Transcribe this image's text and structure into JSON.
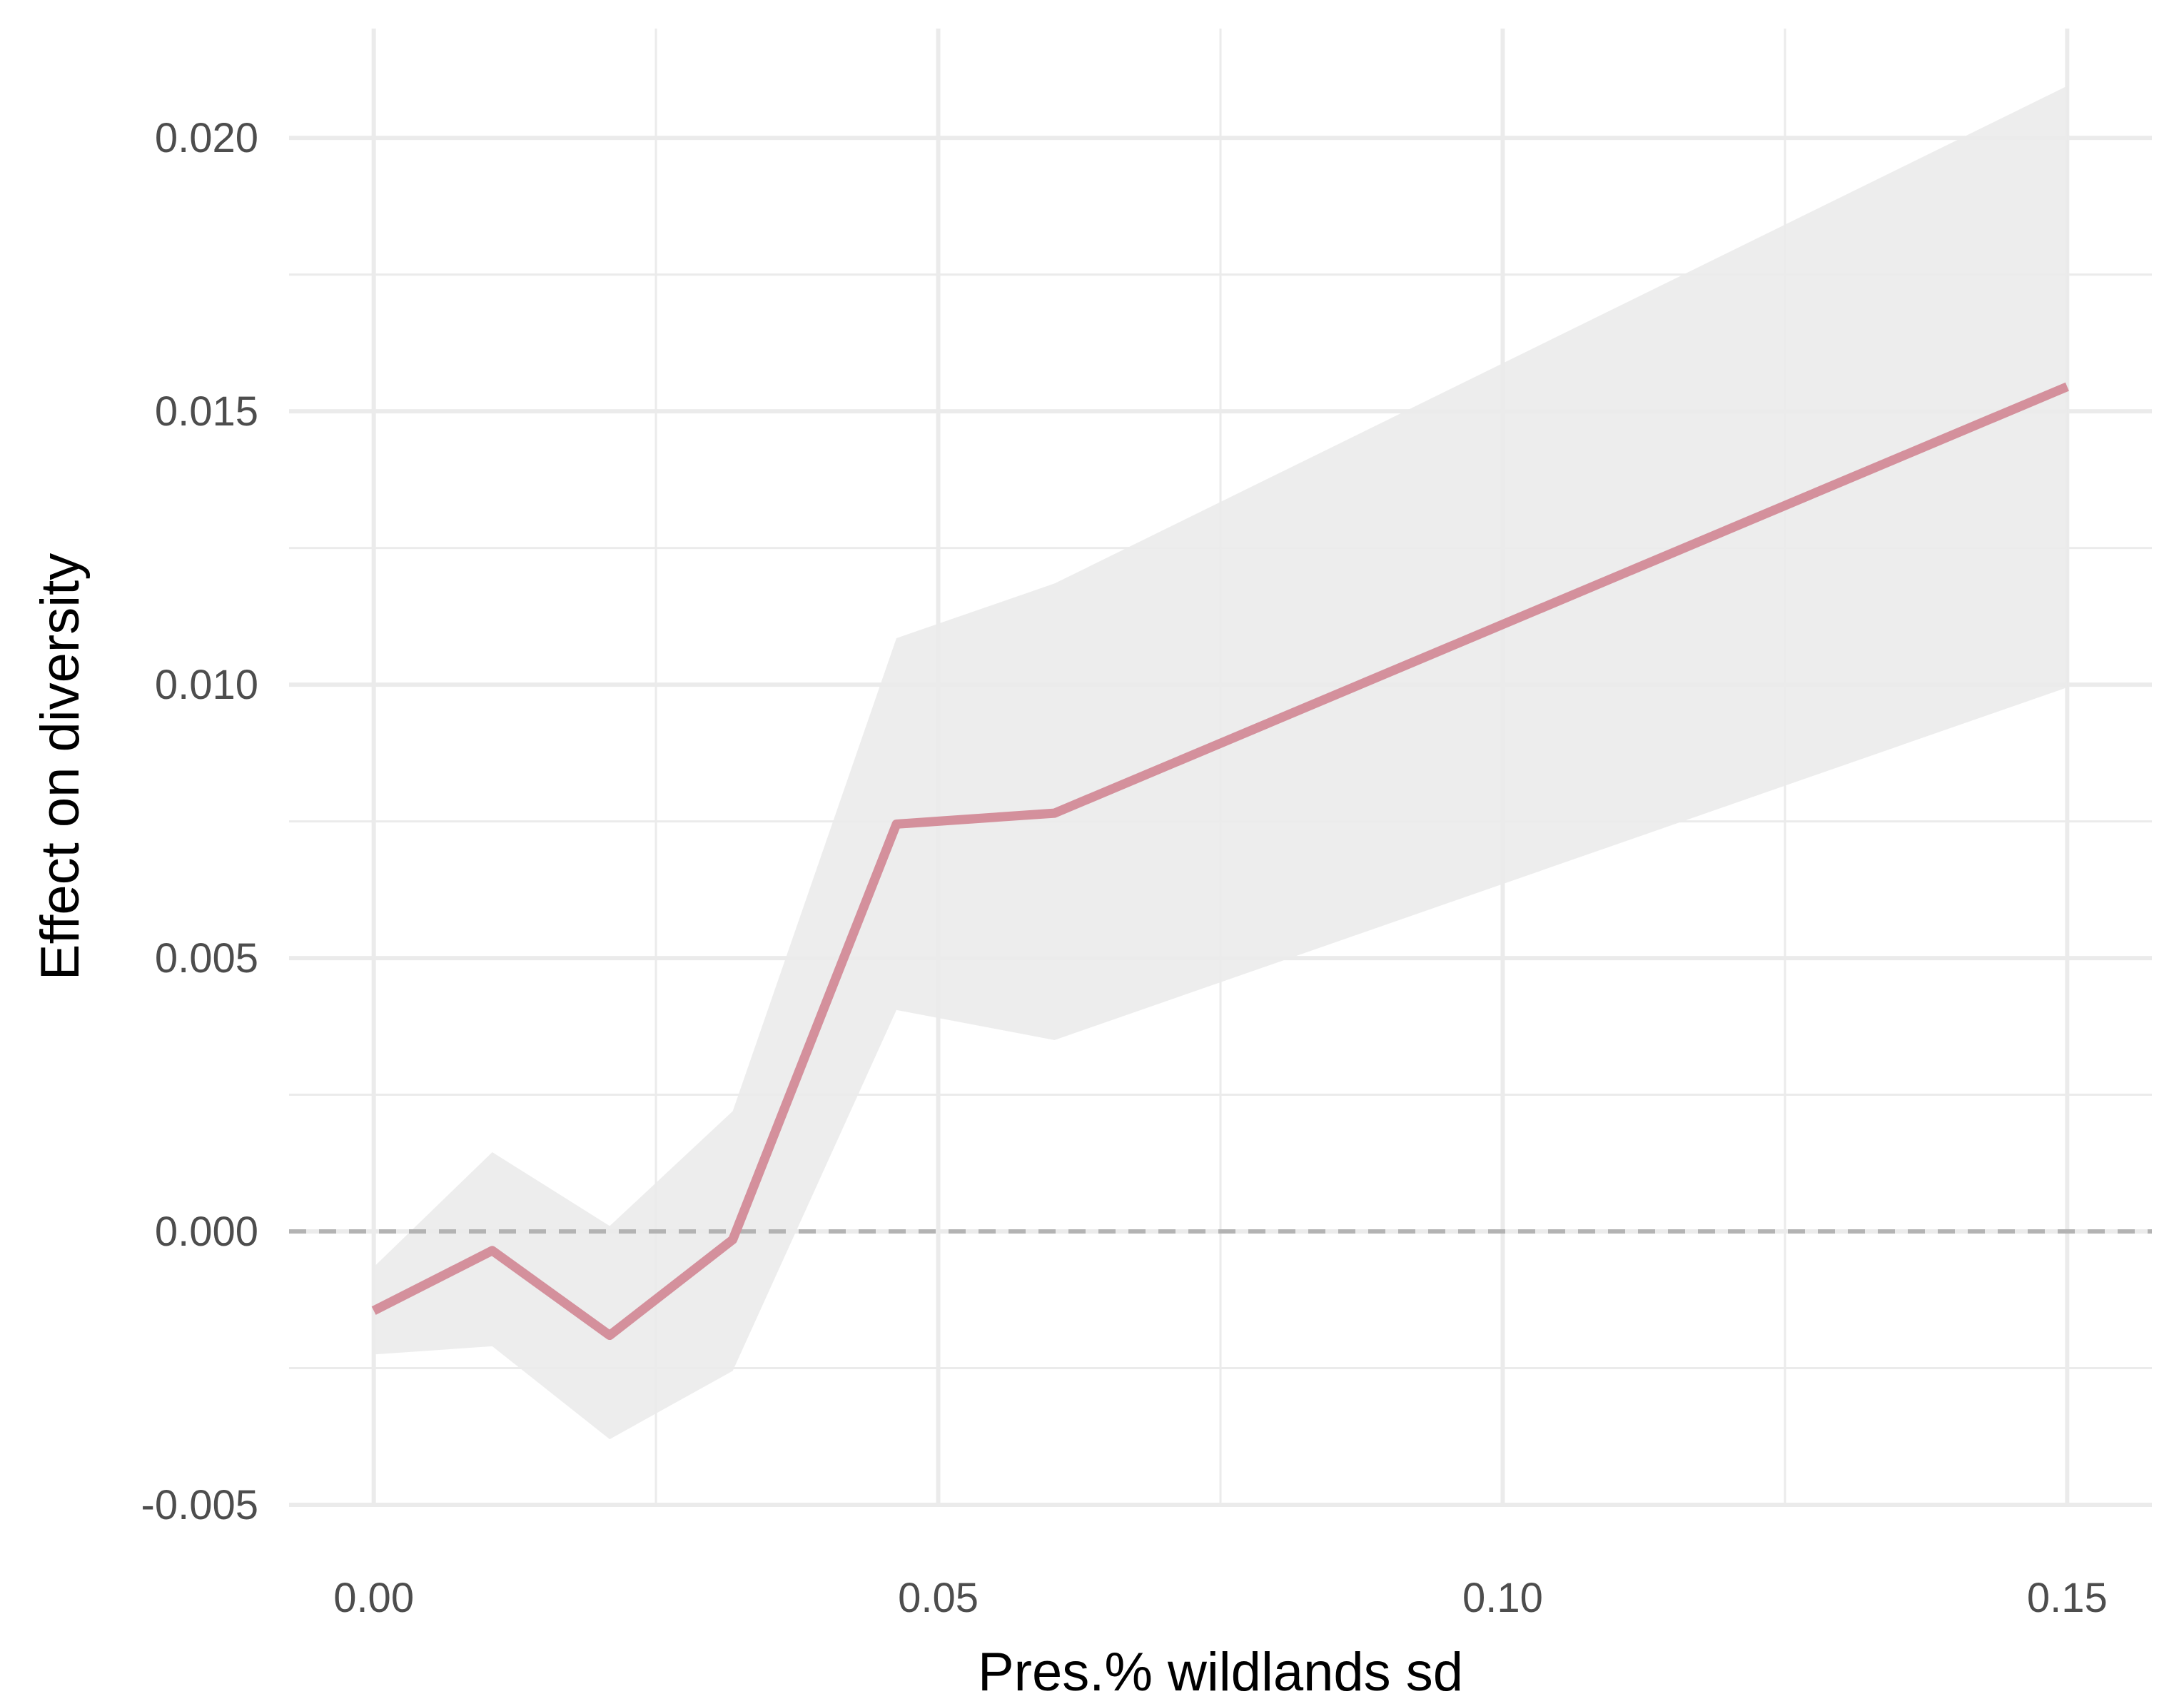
{
  "chart_data": {
    "type": "line",
    "title": "",
    "xlabel": "Pres.% wildlands sd",
    "ylabel": "Effect on diversity",
    "xlim": [
      -0.0075,
      0.1575
    ],
    "ylim": [
      -0.005,
      0.022
    ],
    "x_ticks": [
      0.0,
      0.05,
      0.1,
      0.15
    ],
    "x_tick_labels": [
      "0.00",
      "0.05",
      "0.10",
      "0.15"
    ],
    "y_ticks": [
      -0.005,
      0.0,
      0.005,
      0.01,
      0.015,
      0.02
    ],
    "y_tick_labels": [
      "-0.005",
      "0.000",
      "0.005",
      "0.010",
      "0.015",
      "0.020"
    ],
    "grid": true,
    "reference_line": {
      "y": 0,
      "style": "dashed",
      "color": "#b3b3b3"
    },
    "series": [
      {
        "x": [
          0.0,
          0.0105,
          0.0209,
          0.0318,
          0.0463,
          0.0603,
          0.15
        ],
        "y": [
          -0.00145,
          -0.00035,
          -0.0019,
          -0.00015,
          0.00745,
          0.00765,
          0.01545
        ],
        "ci_lower": [
          -0.00225,
          -0.0021,
          -0.0038,
          -0.00255,
          0.00405,
          0.0035,
          0.00995
        ],
        "ci_upper": [
          -0.00065,
          0.00145,
          0.0001,
          0.0022,
          0.01085,
          0.01185,
          0.02095
        ],
        "color": "#d4909c",
        "band_color": "#ebebeb"
      }
    ]
  }
}
